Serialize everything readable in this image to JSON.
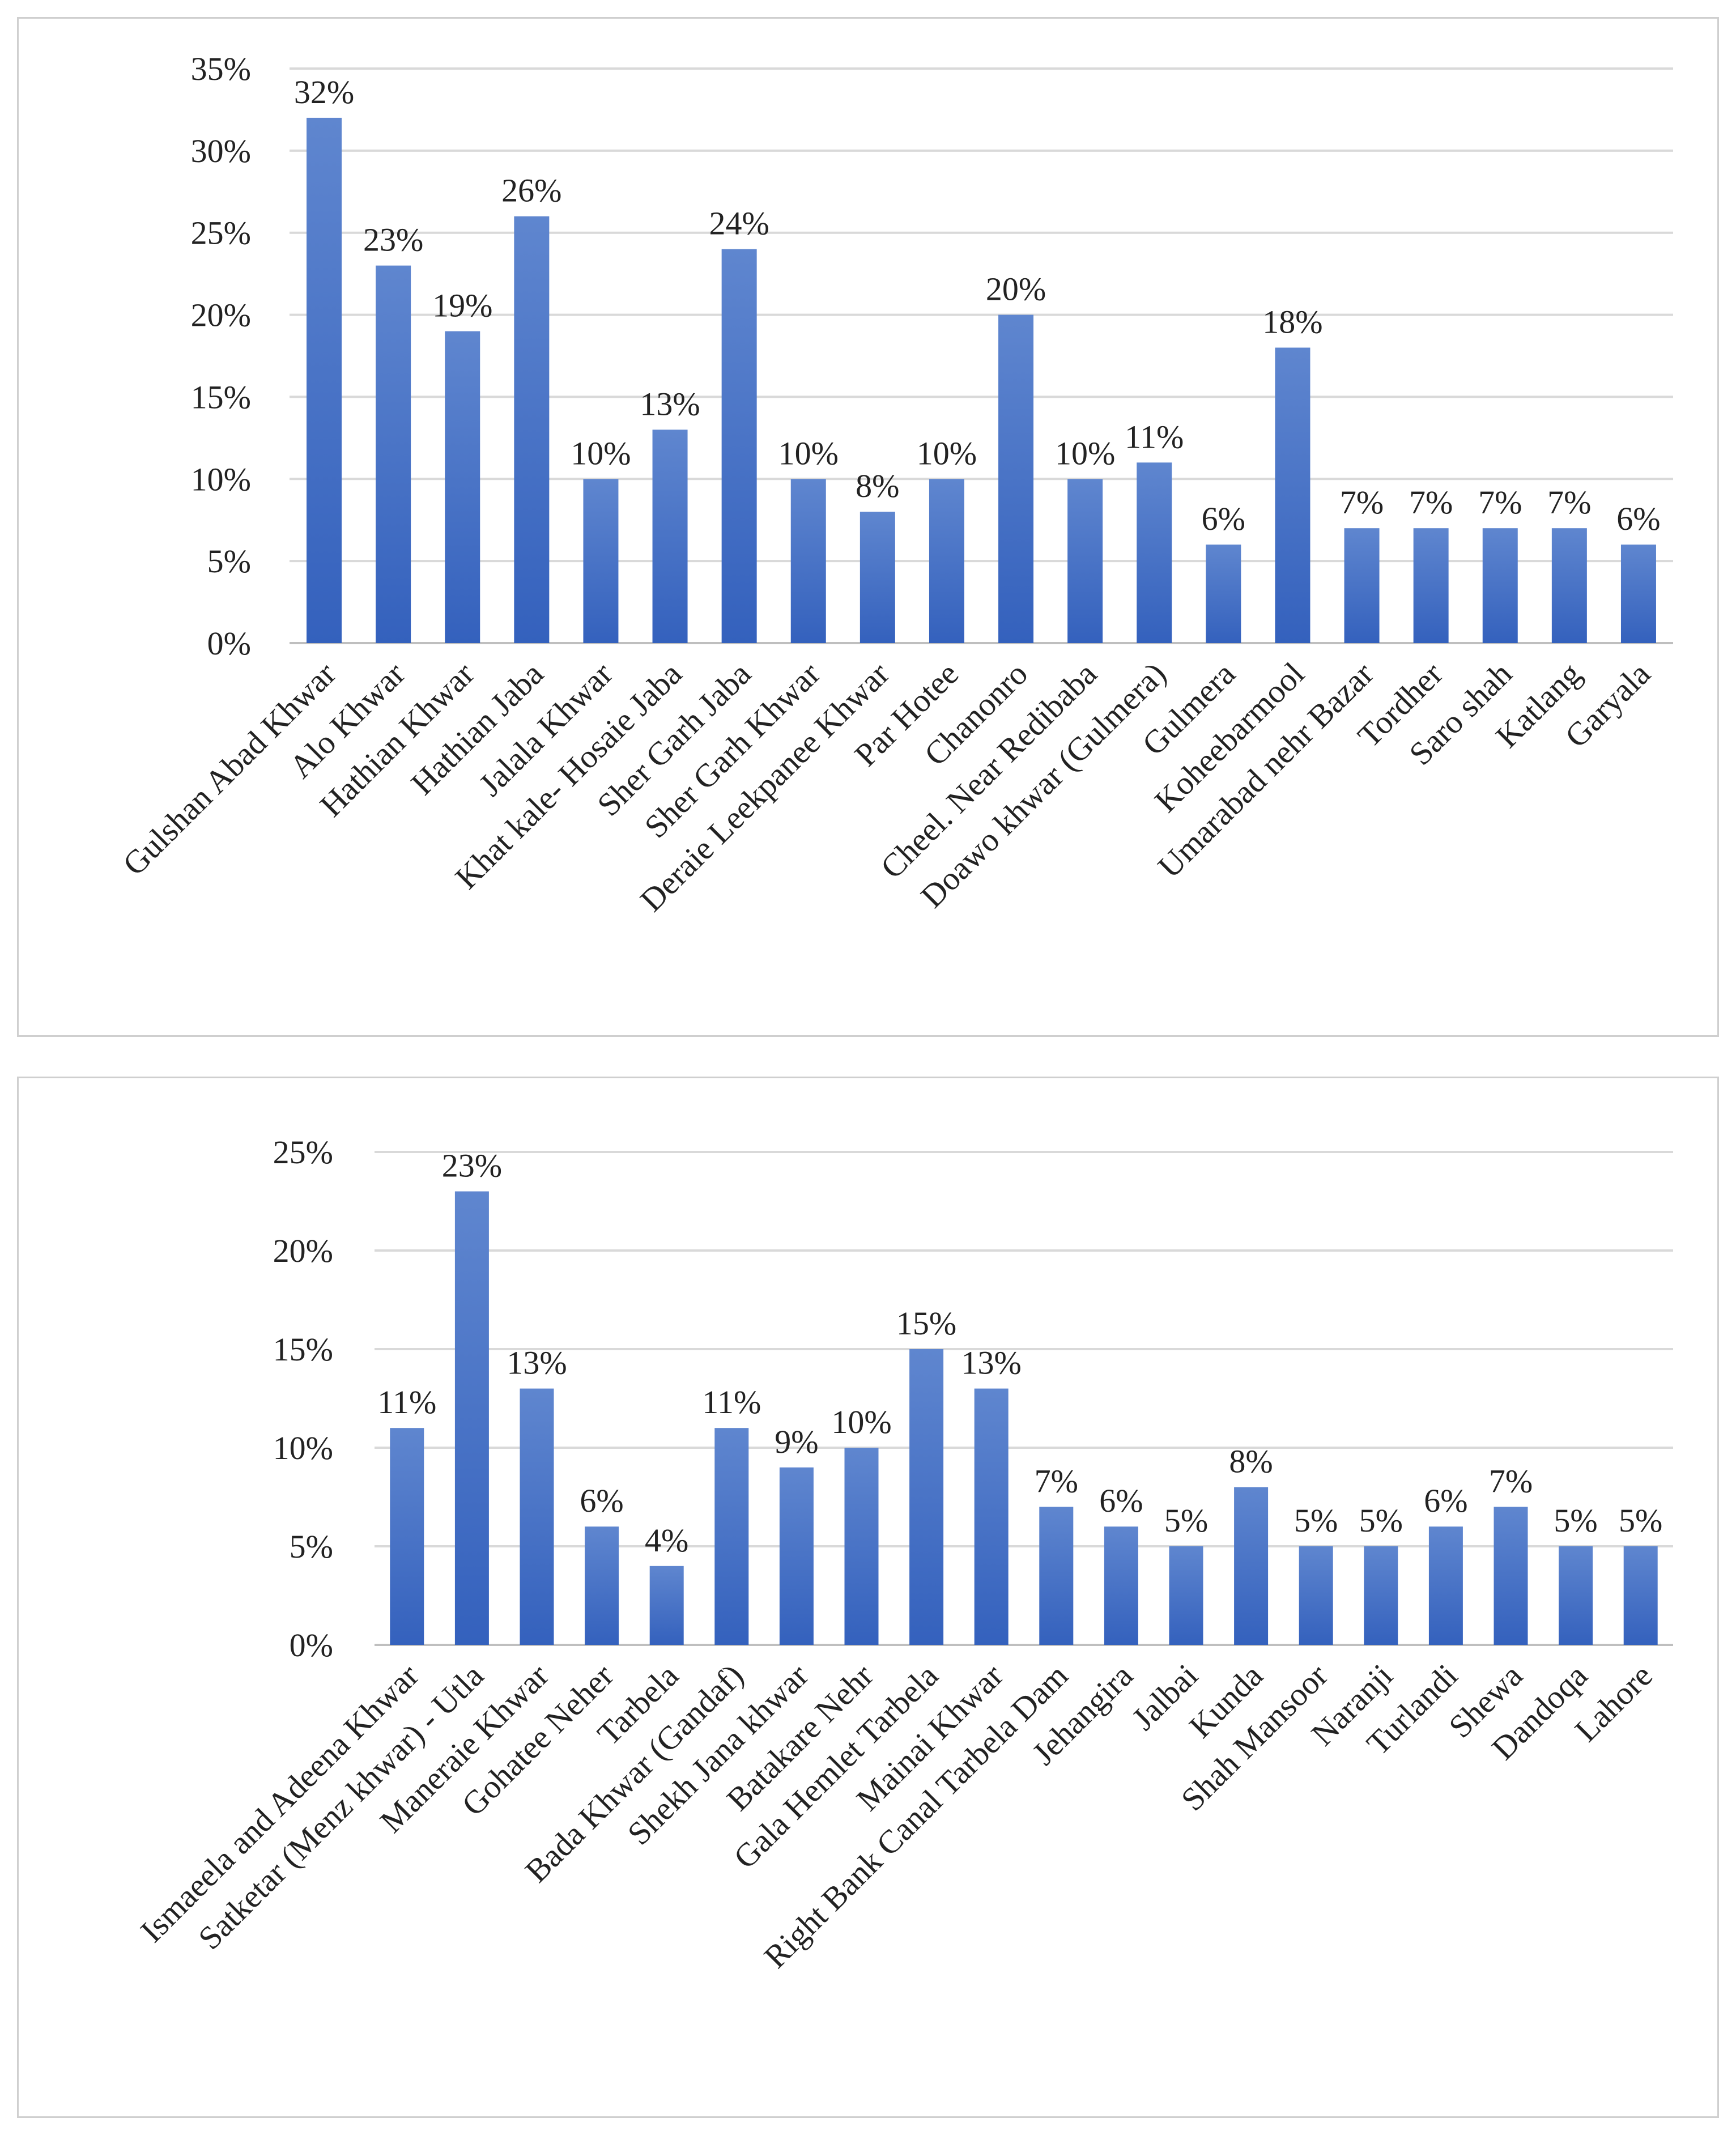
{
  "chart_data": [
    {
      "type": "bar",
      "title": "",
      "xlabel": "",
      "ylabel": "",
      "ylim": [
        0,
        35
      ],
      "yticks": [
        "0%",
        "5%",
        "10%",
        "15%",
        "20%",
        "25%",
        "30%",
        "35%"
      ],
      "grid": true,
      "bar_color": "#4472C4",
      "categories": [
        "Gulshan Abad Khwar",
        "Alo Khwar",
        "Hathian Khwar",
        "Hathian Jaba",
        "Jalala Khwar",
        "Khat kale- Hosaie Jaba",
        "Sher Garh Jaba",
        "Sher Garh Khwar",
        "Deraie Leekpanee Khwar",
        "Par Hotee",
        "Chanonro",
        "Cheel. Near Redibaba",
        "Doawo khwar (Gulmera)",
        "Gulmera",
        "Koheebarmool",
        "Umarabad nehr Bazar",
        "Tordher",
        "Saro shah",
        "Katlang",
        "Garyala"
      ],
      "values": [
        32,
        23,
        19,
        26,
        10,
        13,
        24,
        10,
        8,
        10,
        20,
        10,
        11,
        6,
        18,
        7,
        7,
        7,
        7,
        6
      ],
      "labels": [
        "32%",
        "23%",
        "19%",
        "26%",
        "10%",
        "13%",
        "24%",
        "10%",
        "8%",
        "10%",
        "20%",
        "10%",
        "11%",
        "6%",
        "18%",
        "7%",
        "7%",
        "7%",
        "7%",
        "6%"
      ]
    },
    {
      "type": "bar",
      "title": "",
      "xlabel": "",
      "ylabel": "",
      "ylim": [
        0,
        25
      ],
      "yticks": [
        "0%",
        "5%",
        "10%",
        "15%",
        "20%",
        "25%"
      ],
      "grid": true,
      "bar_color": "#4472C4",
      "categories": [
        "Ismaeela and Adeena Khwar",
        "Satketar (Menz khwar) - Utla",
        "Maneraie Khwar",
        "Gohatee Neher",
        "Tarbela",
        "Bada Khwar (Gandaf)",
        "Shekh Jana khwar",
        "Batakare Nehr",
        "Gala Hemlet Tarbela",
        "Mainai Khwar",
        "Right Bank Canal Tarbela Dam",
        "Jehangira",
        "Jalbai",
        "Kunda",
        "Shah Mansoor",
        "Naranji",
        "Turlandi",
        "Shewa",
        "Dandoqa",
        "Lahore"
      ],
      "values": [
        11,
        23,
        13,
        6,
        4,
        11,
        9,
        10,
        15,
        13,
        7,
        6,
        5,
        8,
        5,
        5,
        6,
        7,
        5,
        5
      ],
      "labels": [
        "11%",
        "23%",
        "13%",
        "6%",
        "4%",
        "11%",
        "9%",
        "10%",
        "15%",
        "13%",
        "7%",
        "6%",
        "5%",
        "8%",
        "5%",
        "5%",
        "6%",
        "7%",
        "5%",
        "5%"
      ]
    }
  ]
}
